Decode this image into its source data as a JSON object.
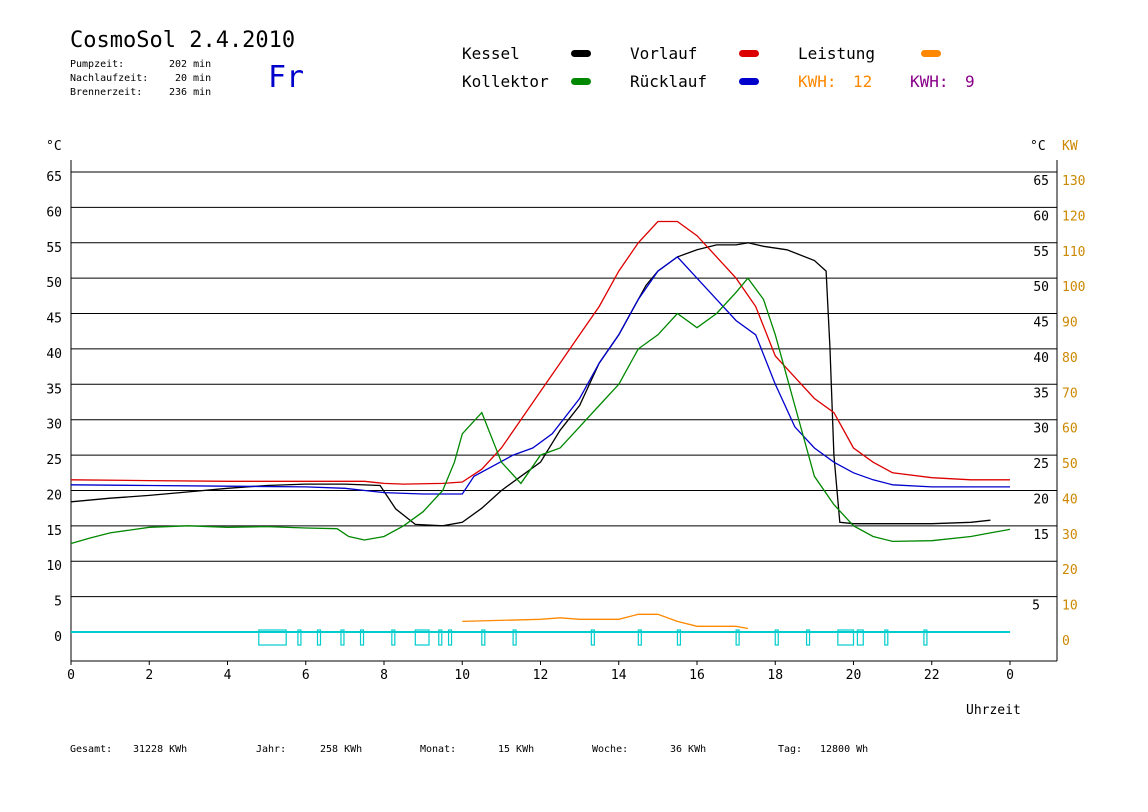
{
  "header": {
    "title": "CosmoSol 2.4.2010",
    "day": "Fr",
    "stats": [
      {
        "label": "Pumpzeit:",
        "value": "202 min"
      },
      {
        "label": "Nachlaufzeit:",
        "value": "20 min"
      },
      {
        "label": "Brennerzeit:",
        "value": "236 min"
      }
    ]
  },
  "legend": {
    "items": [
      {
        "label": "Kessel",
        "color": "#000000"
      },
      {
        "label": "Vorlauf",
        "color": "#dd0000"
      },
      {
        "label": "Leistung",
        "color": "#ff8800"
      },
      {
        "label": "Kollektor",
        "color": "#008800"
      },
      {
        "label": "Rücklauf",
        "color": "#0000cc"
      }
    ],
    "kwh": [
      {
        "label": "KWH:",
        "value": "12",
        "color": "#ff8800"
      },
      {
        "label": "KWH:",
        "value": "9",
        "color": "#880088"
      }
    ]
  },
  "footer": [
    {
      "label": "Gesamt:",
      "value": "31228 KWh"
    },
    {
      "label": "Jahr:",
      "value": "258 KWh"
    },
    {
      "label": "Monat:",
      "value": "15 KWh"
    },
    {
      "label": "Woche:",
      "value": "36 KWh"
    },
    {
      "label": "Tag:",
      "value": "12800 Wh"
    }
  ],
  "chart_data": {
    "type": "line",
    "title": "CosmoSol 2.4.2010",
    "xlabel": "Uhrzeit",
    "ylabel": "°C",
    "ylabel_right": "KW",
    "xlim": [
      0,
      24
    ],
    "ylim": [
      0,
      65
    ],
    "x_ticks": [
      "0",
      "2",
      "4",
      "6",
      "8",
      "10",
      "12",
      "14",
      "16",
      "18",
      "20",
      "22",
      "0"
    ],
    "y_ticks": [
      0,
      5,
      10,
      15,
      20,
      25,
      30,
      35,
      40,
      45,
      50,
      55,
      60,
      65
    ],
    "y_ticks_right_celsius": [
      15,
      20,
      25,
      30,
      35,
      40,
      45,
      50,
      55,
      60,
      65
    ],
    "y_ticks_right_kw": [
      0,
      10,
      20,
      30,
      40,
      50,
      60,
      70,
      80,
      90,
      100,
      110,
      120,
      130
    ],
    "grid": true,
    "series": [
      {
        "name": "Kessel",
        "color": "#000000",
        "points": [
          [
            0,
            18.4
          ],
          [
            1,
            18.9
          ],
          [
            2,
            19.3
          ],
          [
            3,
            19.8
          ],
          [
            4,
            20.3
          ],
          [
            5,
            20.7
          ],
          [
            6,
            20.9
          ],
          [
            7,
            20.9
          ],
          [
            7.9,
            20.7
          ],
          [
            8.3,
            17.4
          ],
          [
            8.8,
            15.2
          ],
          [
            9.5,
            15.0
          ],
          [
            10,
            15.5
          ],
          [
            10.5,
            17.5
          ],
          [
            11,
            20
          ],
          [
            11.5,
            22
          ],
          [
            12,
            24
          ],
          [
            12.5,
            28.5
          ],
          [
            13,
            32
          ],
          [
            13.5,
            38
          ],
          [
            14,
            42
          ],
          [
            14.3,
            45
          ],
          [
            14.7,
            49
          ],
          [
            15,
            51
          ],
          [
            15.5,
            53
          ],
          [
            16,
            54
          ],
          [
            16.5,
            54.7
          ],
          [
            17,
            54.7
          ],
          [
            17.3,
            55
          ],
          [
            17.7,
            54.5
          ],
          [
            18.3,
            54
          ],
          [
            19,
            52.5
          ],
          [
            19.3,
            51
          ],
          [
            19.4,
            40
          ],
          [
            19.5,
            25
          ],
          [
            19.65,
            15.5
          ],
          [
            20,
            15.3
          ],
          [
            22,
            15.3
          ],
          [
            23,
            15.5
          ],
          [
            23.5,
            15.8
          ]
        ]
      },
      {
        "name": "Vorlauf",
        "color": "#dd0000",
        "points": [
          [
            0,
            21.5
          ],
          [
            2,
            21.4
          ],
          [
            4,
            21.3
          ],
          [
            6,
            21.3
          ],
          [
            7.5,
            21.3
          ],
          [
            8,
            21.0
          ],
          [
            8.5,
            20.9
          ],
          [
            9.5,
            21.0
          ],
          [
            10,
            21.2
          ],
          [
            10.5,
            23
          ],
          [
            11,
            26
          ],
          [
            11.5,
            30
          ],
          [
            12,
            34
          ],
          [
            12.5,
            38
          ],
          [
            13,
            42
          ],
          [
            13.5,
            46
          ],
          [
            14,
            51
          ],
          [
            14.5,
            55
          ],
          [
            15,
            58
          ],
          [
            15.5,
            58
          ],
          [
            16,
            56
          ],
          [
            16.5,
            53
          ],
          [
            17,
            50
          ],
          [
            17.5,
            46
          ],
          [
            18,
            39
          ],
          [
            18.5,
            36
          ],
          [
            19,
            33
          ],
          [
            19.5,
            31
          ],
          [
            20,
            26
          ],
          [
            20.5,
            24
          ],
          [
            21,
            22.5
          ],
          [
            22,
            21.8
          ],
          [
            23,
            21.5
          ],
          [
            24,
            21.5
          ]
        ]
      },
      {
        "name": "Rücklauf",
        "color": "#0000cc",
        "points": [
          [
            0,
            20.8
          ],
          [
            2,
            20.7
          ],
          [
            4,
            20.6
          ],
          [
            6,
            20.5
          ],
          [
            7,
            20.3
          ],
          [
            8,
            19.7
          ],
          [
            9,
            19.5
          ],
          [
            10,
            19.5
          ],
          [
            10.3,
            22
          ],
          [
            10.8,
            23.5
          ],
          [
            11.3,
            25
          ],
          [
            11.8,
            26
          ],
          [
            12.3,
            28
          ],
          [
            13,
            33
          ],
          [
            13.5,
            38
          ],
          [
            14,
            42
          ],
          [
            14.5,
            47
          ],
          [
            15,
            51
          ],
          [
            15.5,
            53
          ],
          [
            16,
            50
          ],
          [
            16.5,
            47
          ],
          [
            17,
            44
          ],
          [
            17.5,
            42
          ],
          [
            18,
            35
          ],
          [
            18.5,
            29
          ],
          [
            19,
            26
          ],
          [
            19.5,
            24
          ],
          [
            20,
            22.5
          ],
          [
            20.5,
            21.5
          ],
          [
            21,
            20.8
          ],
          [
            22,
            20.5
          ],
          [
            23,
            20.5
          ],
          [
            24,
            20.5
          ]
        ]
      },
      {
        "name": "Kollektor",
        "color": "#008800",
        "points": [
          [
            0,
            12.5
          ],
          [
            0.5,
            13.3
          ],
          [
            1,
            14
          ],
          [
            2,
            14.8
          ],
          [
            3,
            15
          ],
          [
            4,
            14.8
          ],
          [
            5,
            14.9
          ],
          [
            6,
            14.7
          ],
          [
            6.8,
            14.6
          ],
          [
            7.1,
            13.5
          ],
          [
            7.5,
            13
          ],
          [
            8,
            13.5
          ],
          [
            8.5,
            15
          ],
          [
            9,
            17
          ],
          [
            9.5,
            20
          ],
          [
            9.8,
            24
          ],
          [
            10,
            28
          ],
          [
            10.5,
            31
          ],
          [
            11,
            24
          ],
          [
            11.5,
            21
          ],
          [
            12,
            25
          ],
          [
            12.5,
            26
          ],
          [
            13,
            29
          ],
          [
            13.5,
            32
          ],
          [
            14,
            35
          ],
          [
            14.5,
            40
          ],
          [
            15,
            42
          ],
          [
            15.5,
            45
          ],
          [
            16,
            43
          ],
          [
            16.5,
            45
          ],
          [
            17,
            48
          ],
          [
            17.3,
            50
          ],
          [
            17.7,
            47
          ],
          [
            18,
            42
          ],
          [
            18.5,
            32
          ],
          [
            19,
            22
          ],
          [
            19.5,
            18
          ],
          [
            20,
            15
          ],
          [
            20.5,
            13.5
          ],
          [
            21,
            12.8
          ],
          [
            22,
            12.9
          ],
          [
            23,
            13.5
          ],
          [
            23.5,
            14
          ],
          [
            24,
            14.5
          ]
        ]
      },
      {
        "name": "Leistung",
        "color": "#ff8800",
        "points": [
          [
            10,
            1.5
          ],
          [
            12,
            1.8
          ],
          [
            12.5,
            2.0
          ],
          [
            13,
            1.8
          ],
          [
            14,
            1.8
          ],
          [
            14.5,
            2.5
          ],
          [
            15,
            2.5
          ],
          [
            15.5,
            1.5
          ],
          [
            16,
            0.8
          ],
          [
            17,
            0.8
          ],
          [
            17.3,
            0.5
          ]
        ]
      }
    ]
  }
}
